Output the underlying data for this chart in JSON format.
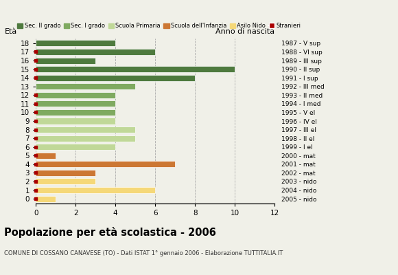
{
  "ages": [
    18,
    17,
    16,
    15,
    14,
    13,
    12,
    11,
    10,
    9,
    8,
    7,
    6,
    5,
    4,
    3,
    2,
    1,
    0
  ],
  "years": [
    "1987 - V sup",
    "1988 - VI sup",
    "1989 - III sup",
    "1990 - II sup",
    "1991 - I sup",
    "1992 - III med",
    "1993 - II med",
    "1994 - I med",
    "1995 - V el",
    "1996 - IV el",
    "1997 - III el",
    "1998 - II el",
    "1999 - I el",
    "2000 - mat",
    "2001 - mat",
    "2002 - mat",
    "2003 - nido",
    "2004 - nido",
    "2005 - nido"
  ],
  "values": [
    4,
    6,
    3,
    10,
    8,
    5,
    4,
    4,
    4,
    4,
    5,
    5,
    4,
    1,
    7,
    3,
    3,
    6,
    1
  ],
  "categories": {
    "sec2": [
      18,
      17,
      16,
      15,
      14
    ],
    "sec1": [
      13,
      12,
      11,
      10
    ],
    "primaria": [
      9,
      8,
      7,
      6
    ],
    "infanzia": [
      5,
      4,
      3
    ],
    "nido": [
      2,
      1,
      0
    ]
  },
  "stranieri_ages": [
    17,
    16,
    15,
    14,
    12,
    11,
    10,
    9,
    8,
    7,
    6,
    5,
    4,
    3,
    2,
    1,
    0
  ],
  "colors": {
    "sec2": "#4e7a3e",
    "sec1": "#7faa60",
    "primaria": "#c0d898",
    "infanzia": "#cc7733",
    "nido": "#f5d878",
    "stranieri": "#aa0000"
  },
  "legend_labels": [
    "Sec. II grado",
    "Sec. I grado",
    "Scuola Primaria",
    "Scuola dell'Infanzia",
    "Asilo Nido",
    "Stranieri"
  ],
  "title": "Popolazione per età scolastica - 2006",
  "subtitle": "COMUNE DI COSSANO CANAVESE (TO) - Dati ISTAT 1° gennaio 2006 - Elaborazione TUTTITALIA.IT",
  "ylabel_left": "Età",
  "ylabel_right": "Anno di nascita",
  "xlim": [
    0,
    12
  ],
  "xticks": [
    0,
    2,
    4,
    6,
    8,
    10,
    12
  ],
  "background_color": "#f0f0e8",
  "bar_height": 0.72
}
